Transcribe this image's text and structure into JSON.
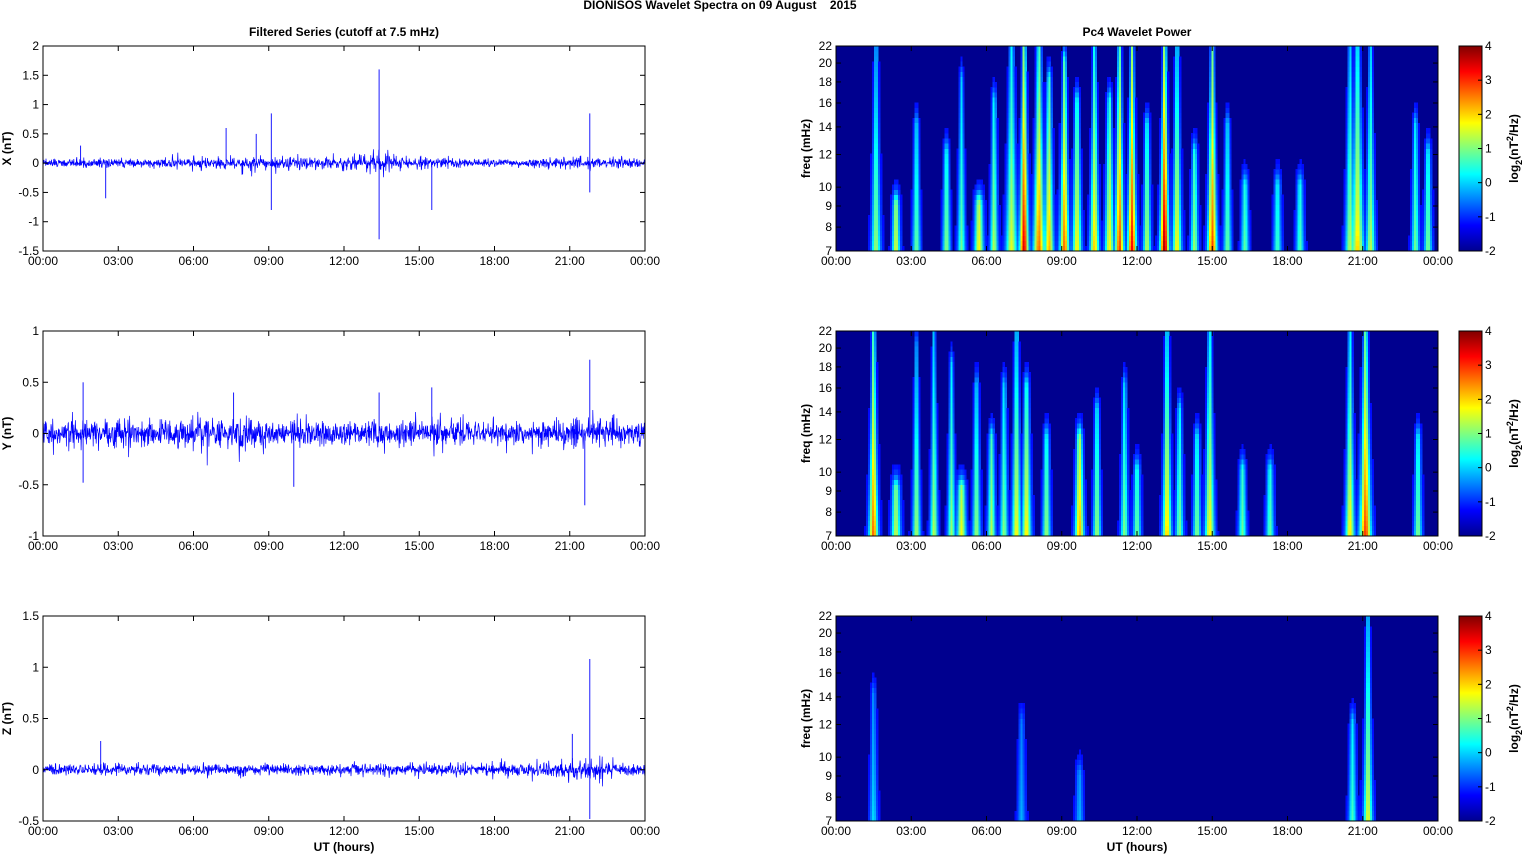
{
  "figure": {
    "title": "DIONISOS Wavelet Spectra on 09 August    2015"
  },
  "colors": {
    "trace": "#0000ff",
    "spectrum_background": "#00008f",
    "colormap": "jet"
  },
  "chart_data": [
    {
      "type": "line",
      "title": "Filtered Series (cutoff at 7.5 mHz)",
      "xlabel": "",
      "ylabel": "X (nT)",
      "x_range_hours": [
        0,
        24
      ],
      "x_ticks": [
        "00:00",
        "03:00",
        "06:00",
        "09:00",
        "12:00",
        "15:00",
        "18:00",
        "21:00",
        "00:00"
      ],
      "ylim": [
        -1.5,
        2
      ],
      "y_ticks": [
        -1.5,
        -1,
        -0.5,
        0,
        0.5,
        1,
        1.5,
        2
      ],
      "baseline_amplitude": 0.05,
      "envelope": [
        [
          0,
          0.06
        ],
        [
          1.5,
          0.1
        ],
        [
          3,
          0.08
        ],
        [
          6,
          0.2
        ],
        [
          7.5,
          0.3
        ],
        [
          9,
          0.25
        ],
        [
          10,
          0.28
        ],
        [
          12,
          0.25
        ],
        [
          13.5,
          0.3
        ],
        [
          15.5,
          0.2
        ],
        [
          17,
          0.12
        ],
        [
          19,
          0.08
        ],
        [
          21,
          0.15
        ],
        [
          22,
          0.22
        ],
        [
          24,
          0.1
        ]
      ],
      "peaks": [
        [
          1.5,
          0.3
        ],
        [
          2.5,
          -0.6
        ],
        [
          7.3,
          0.6
        ],
        [
          8.5,
          0.5
        ],
        [
          9.1,
          0.85
        ],
        [
          9.1,
          -0.8
        ],
        [
          13.4,
          1.6
        ],
        [
          13.4,
          -1.3
        ],
        [
          15.5,
          -0.8
        ],
        [
          21.8,
          0.85
        ],
        [
          21.8,
          -0.5
        ]
      ]
    },
    {
      "type": "line",
      "title": "",
      "xlabel": "",
      "ylabel": "Y (nT)",
      "x_range_hours": [
        0,
        24
      ],
      "x_ticks": [
        "00:00",
        "03:00",
        "06:00",
        "09:00",
        "12:00",
        "15:00",
        "18:00",
        "21:00",
        "00:00"
      ],
      "ylim": [
        -1,
        1
      ],
      "y_ticks": [
        -1,
        -0.5,
        0,
        0.5,
        1
      ],
      "baseline_amplitude": 0.08,
      "envelope": [
        [
          0,
          0.12
        ],
        [
          1.5,
          0.25
        ],
        [
          3,
          0.22
        ],
        [
          5,
          0.25
        ],
        [
          7.5,
          0.3
        ],
        [
          9,
          0.22
        ],
        [
          12,
          0.2
        ],
        [
          15,
          0.2
        ],
        [
          18,
          0.15
        ],
        [
          21,
          0.2
        ],
        [
          22,
          0.3
        ],
        [
          24,
          0.12
        ]
      ],
      "peaks": [
        [
          1.6,
          0.5
        ],
        [
          1.6,
          -0.48
        ],
        [
          7.6,
          0.4
        ],
        [
          10.0,
          -0.52
        ],
        [
          13.4,
          0.4
        ],
        [
          15.5,
          0.45
        ],
        [
          21.6,
          -0.7
        ],
        [
          21.8,
          0.72
        ]
      ]
    },
    {
      "type": "line",
      "title": "",
      "xlabel": "UT (hours)",
      "ylabel": "Z (nT)",
      "x_range_hours": [
        0,
        24
      ],
      "x_ticks": [
        "00:00",
        "03:00",
        "06:00",
        "09:00",
        "12:00",
        "15:00",
        "18:00",
        "21:00",
        "00:00"
      ],
      "ylim": [
        -0.5,
        1.5
      ],
      "y_ticks": [
        -0.5,
        0,
        0.5,
        1,
        1.5
      ],
      "baseline_amplitude": 0.04,
      "envelope": [
        [
          0,
          0.05
        ],
        [
          2.3,
          0.08
        ],
        [
          5,
          0.06
        ],
        [
          9,
          0.06
        ],
        [
          15,
          0.07
        ],
        [
          19,
          0.08
        ],
        [
          20.5,
          0.15
        ],
        [
          21.5,
          0.35
        ],
        [
          22,
          0.25
        ],
        [
          24,
          0.05
        ]
      ],
      "peaks": [
        [
          2.3,
          0.28
        ],
        [
          21.1,
          0.35
        ],
        [
          21.8,
          1.08
        ],
        [
          21.8,
          -0.48
        ]
      ]
    },
    {
      "type": "heatmap",
      "title": "Pc4 Wavelet Power",
      "xlabel": "",
      "ylabel": "freq (mHz)",
      "x_range_hours": [
        0,
        24
      ],
      "x_ticks": [
        "00:00",
        "03:00",
        "06:00",
        "09:00",
        "12:00",
        "15:00",
        "18:00",
        "21:00",
        "00:00"
      ],
      "y_scale": "log",
      "ylim": [
        7,
        22
      ],
      "y_ticks": [
        7,
        8,
        9,
        10,
        12,
        14,
        16,
        18,
        20,
        22
      ],
      "colorbar_label": "log2(nT2/Hz)",
      "colorbar_range": [
        -2,
        4
      ],
      "colorbar_ticks": [
        -2,
        -1,
        0,
        1,
        2,
        3,
        4
      ],
      "bursts": [
        [
          1.6,
          0.8,
          22,
          0.12
        ],
        [
          2.4,
          1.2,
          9,
          0.1
        ],
        [
          3.2,
          0.5,
          14,
          0.1
        ],
        [
          4.4,
          0.7,
          12,
          0.1
        ],
        [
          5.0,
          0.5,
          18,
          0.1
        ],
        [
          5.7,
          1.5,
          9,
          0.12
        ],
        [
          6.3,
          1.0,
          16,
          0.1
        ],
        [
          7.0,
          1.3,
          22,
          0.15
        ],
        [
          7.5,
          3.5,
          22,
          0.12
        ],
        [
          8.1,
          2.5,
          22,
          0.15
        ],
        [
          8.5,
          2.0,
          18,
          0.12
        ],
        [
          9.1,
          2.5,
          20,
          0.12
        ],
        [
          9.6,
          1.5,
          16,
          0.12
        ],
        [
          10.3,
          1.8,
          22,
          0.12
        ],
        [
          10.9,
          1.5,
          16,
          0.12
        ],
        [
          11.3,
          2.8,
          22,
          0.12
        ],
        [
          11.8,
          3.2,
          22,
          0.12
        ],
        [
          12.4,
          1.0,
          14,
          0.1
        ],
        [
          13.1,
          3.8,
          22,
          0.12
        ],
        [
          13.6,
          1.5,
          22,
          0.12
        ],
        [
          14.3,
          0.8,
          12,
          0.1
        ],
        [
          15.0,
          2.8,
          22,
          0.12
        ],
        [
          15.6,
          0.5,
          14,
          0.1
        ],
        [
          16.3,
          0.4,
          10,
          0.1
        ],
        [
          17.6,
          0.2,
          10,
          0.1
        ],
        [
          18.5,
          0.3,
          10,
          0.1
        ],
        [
          20.5,
          1.0,
          22,
          0.12
        ],
        [
          20.8,
          1.8,
          22,
          0.15
        ],
        [
          21.3,
          1.0,
          22,
          0.12
        ],
        [
          23.1,
          0.5,
          14,
          0.1
        ],
        [
          23.6,
          0.6,
          12,
          0.1
        ]
      ]
    },
    {
      "type": "heatmap",
      "title": "",
      "xlabel": "",
      "ylabel": "freq (mHz)",
      "x_range_hours": [
        0,
        24
      ],
      "x_ticks": [
        "00:00",
        "03:00",
        "06:00",
        "09:00",
        "12:00",
        "15:00",
        "18:00",
        "21:00",
        "00:00"
      ],
      "y_scale": "log",
      "ylim": [
        7,
        22
      ],
      "y_ticks": [
        7,
        8,
        9,
        10,
        12,
        14,
        16,
        18,
        20,
        22
      ],
      "colorbar_label": "log2(nT2/Hz)",
      "colorbar_range": [
        -2,
        4
      ],
      "colorbar_ticks": [
        -2,
        -1,
        0,
        1,
        2,
        3,
        4
      ],
      "bursts": [
        [
          1.5,
          2.5,
          22,
          0.12
        ],
        [
          2.4,
          1.0,
          9,
          0.12
        ],
        [
          3.2,
          0.9,
          20,
          0.1
        ],
        [
          3.9,
          1.0,
          22,
          0.1
        ],
        [
          4.6,
          0.8,
          18,
          0.1
        ],
        [
          5.0,
          1.4,
          9,
          0.12
        ],
        [
          5.6,
          0.8,
          16,
          0.1
        ],
        [
          6.2,
          1.0,
          12,
          0.1
        ],
        [
          6.7,
          0.7,
          16,
          0.1
        ],
        [
          7.2,
          1.5,
          22,
          0.12
        ],
        [
          7.6,
          1.6,
          16,
          0.12
        ],
        [
          8.4,
          0.8,
          12,
          0.1
        ],
        [
          9.7,
          2.0,
          12,
          0.12
        ],
        [
          10.4,
          0.8,
          14,
          0.1
        ],
        [
          11.5,
          0.6,
          16,
          0.1
        ],
        [
          12.0,
          0.5,
          10,
          0.1
        ],
        [
          13.2,
          1.8,
          22,
          0.12
        ],
        [
          13.7,
          0.6,
          14,
          0.1
        ],
        [
          14.4,
          0.6,
          12,
          0.1
        ],
        [
          14.9,
          1.5,
          22,
          0.12
        ],
        [
          16.2,
          0.5,
          10,
          0.1
        ],
        [
          17.3,
          0.4,
          10,
          0.1
        ],
        [
          20.5,
          1.6,
          22,
          0.12
        ],
        [
          21.1,
          2.8,
          22,
          0.15
        ],
        [
          23.2,
          0.6,
          12,
          0.1
        ]
      ]
    },
    {
      "type": "heatmap",
      "title": "",
      "xlabel": "UT (hours)",
      "ylabel": "freq (mHz)",
      "x_range_hours": [
        0,
        24
      ],
      "x_ticks": [
        "00:00",
        "03:00",
        "06:00",
        "09:00",
        "12:00",
        "15:00",
        "18:00",
        "21:00",
        "00:00"
      ],
      "y_scale": "log",
      "ylim": [
        7,
        22
      ],
      "y_ticks": [
        7,
        8,
        9,
        10,
        12,
        14,
        16,
        18,
        20,
        22
      ],
      "colorbar_label": "log2(nT2/Hz)",
      "colorbar_range": [
        -2,
        4
      ],
      "colorbar_ticks": [
        -2,
        -1,
        0,
        1,
        2,
        3,
        4
      ],
      "bursts": [
        [
          1.5,
          -0.5,
          14,
          0.1
        ],
        [
          7.4,
          -0.8,
          12,
          0.1
        ],
        [
          9.7,
          -0.8,
          9,
          0.1
        ],
        [
          20.6,
          0.2,
          12,
          0.1
        ],
        [
          21.2,
          1.3,
          22,
          0.12
        ]
      ]
    }
  ]
}
